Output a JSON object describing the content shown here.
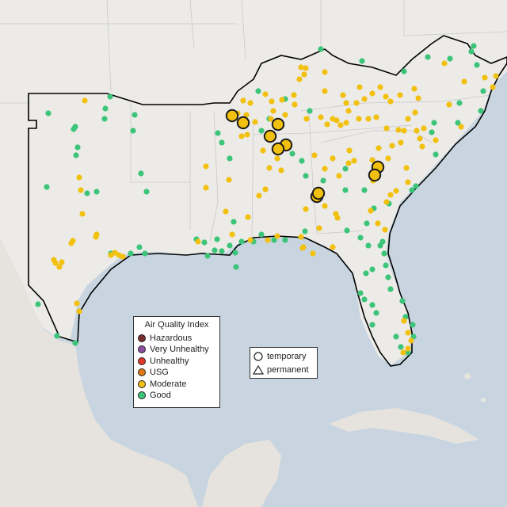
{
  "map": {
    "region": "Southeastern United States",
    "water_color": "#c8d5e0",
    "land_color": "#ececea",
    "neighbor_land_color": "#e4e3df",
    "border_color": "#000000"
  },
  "legend": {
    "title": "Air Quality Index",
    "categories": [
      {
        "label": "Hazardous",
        "color": "#7b2d2d"
      },
      {
        "label": "Very Unhealthy",
        "color": "#8e4fa0"
      },
      {
        "label": "Unhealthy",
        "color": "#e0392b"
      },
      {
        "label": "USG",
        "color": "#e07a1b"
      },
      {
        "label": "Moderate",
        "color": "#f2c00e"
      },
      {
        "label": "Good",
        "color": "#3cc479"
      }
    ]
  },
  "monitor_type_legend": {
    "temporary": {
      "label": "temporary",
      "icon": "circle-outline-icon"
    },
    "permanent": {
      "label": "permanent",
      "icon": "triangle-outline-icon"
    }
  }
}
